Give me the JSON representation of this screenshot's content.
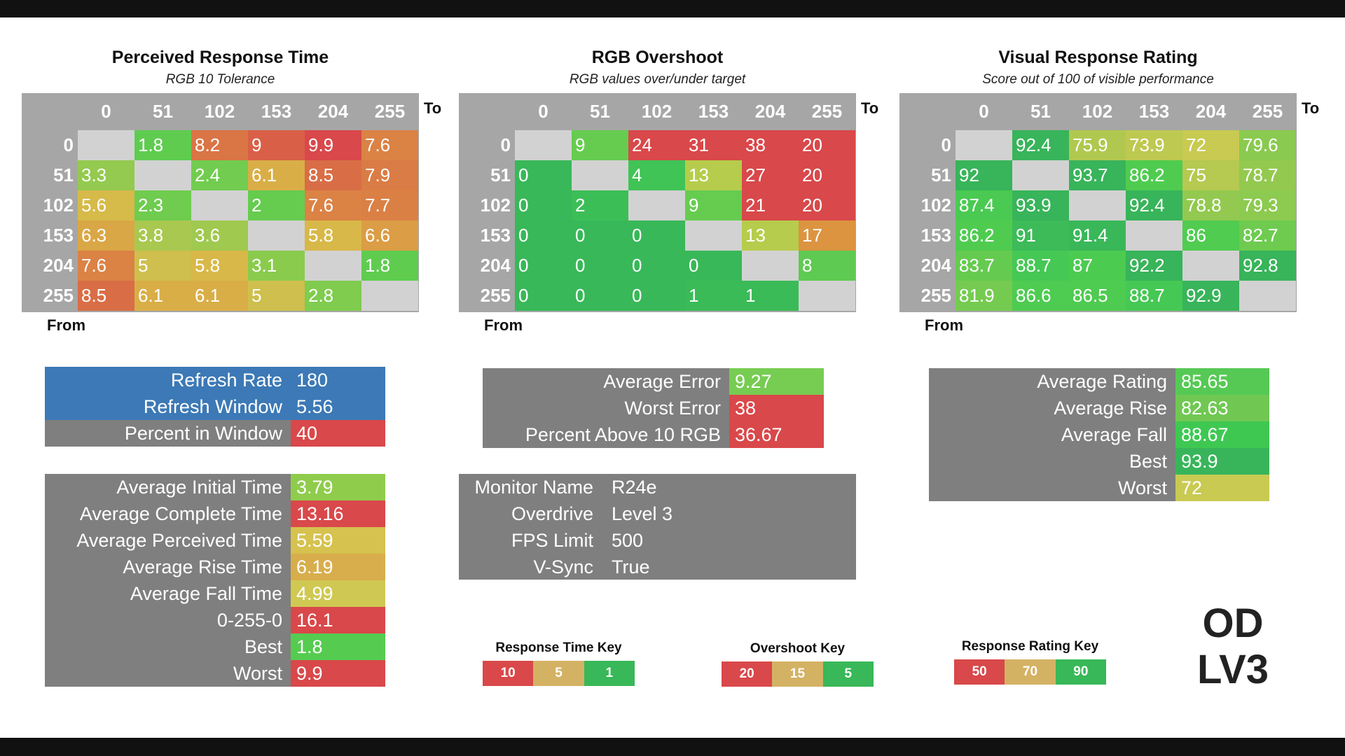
{
  "chart_data": [
    {
      "type": "heatmap",
      "title": "Perceived Response Time",
      "subtitle": "RGB 10 Tolerance",
      "xlabel": "To",
      "ylabel": "From",
      "categories": [
        "0",
        "51",
        "102",
        "153",
        "204",
        "255"
      ],
      "values": [
        [
          null,
          1.8,
          8.2,
          9,
          9.9,
          7.6
        ],
        [
          3.3,
          null,
          2.4,
          6.1,
          8.5,
          7.9
        ],
        [
          5.6,
          2.3,
          null,
          2,
          7.6,
          7.7
        ],
        [
          6.3,
          3.8,
          3.6,
          null,
          5.8,
          6.6
        ],
        [
          7.6,
          5,
          5.8,
          3.1,
          null,
          1.8
        ],
        [
          8.5,
          6.1,
          6.1,
          5,
          2.8,
          null
        ]
      ]
    },
    {
      "type": "heatmap",
      "title": "RGB Overshoot",
      "subtitle": "RGB values over/under target",
      "xlabel": "To",
      "ylabel": "From",
      "categories": [
        "0",
        "51",
        "102",
        "153",
        "204",
        "255"
      ],
      "values": [
        [
          null,
          9,
          24,
          31,
          38,
          20
        ],
        [
          0,
          null,
          4,
          13,
          27,
          20
        ],
        [
          0,
          2,
          null,
          9,
          21,
          20
        ],
        [
          0,
          0,
          0,
          null,
          13,
          17
        ],
        [
          0,
          0,
          0,
          0,
          null,
          8
        ],
        [
          0,
          0,
          0,
          1,
          1,
          null
        ]
      ]
    },
    {
      "type": "heatmap",
      "title": "Visual Response Rating",
      "subtitle": "Score out of 100 of visible performance",
      "xlabel": "To",
      "ylabel": "From",
      "categories": [
        "0",
        "51",
        "102",
        "153",
        "204",
        "255"
      ],
      "values": [
        [
          null,
          92.4,
          75.9,
          73.9,
          72,
          79.6
        ],
        [
          92,
          null,
          93.7,
          86.2,
          75,
          78.7
        ],
        [
          87.4,
          93.9,
          null,
          92.4,
          78.8,
          79.3
        ],
        [
          86.2,
          91,
          91.4,
          null,
          86,
          82.7
        ],
        [
          83.7,
          88.7,
          87,
          92.2,
          null,
          92.8
        ],
        [
          81.9,
          86.6,
          86.5,
          88.7,
          92.9,
          null
        ]
      ]
    }
  ],
  "refresh": [
    {
      "label": "Refresh Rate",
      "value": "180",
      "color": "#3c79b6"
    },
    {
      "label": "Refresh Window",
      "value": "5.56",
      "color": "#3c79b6"
    },
    {
      "label": "Percent in Window",
      "value": "40",
      "color": "#d9484a"
    }
  ],
  "response_stats": [
    {
      "label": "Average Initial Time",
      "value": "3.79",
      "color": "#8fcc4c"
    },
    {
      "label": "Average Complete Time",
      "value": "13.16",
      "color": "#d9484a"
    },
    {
      "label": "Average Perceived Time",
      "value": "5.59",
      "color": "#d6c24e"
    },
    {
      "label": "Average Rise Time",
      "value": "6.19",
      "color": "#d8ae4c"
    },
    {
      "label": "Average Fall Time",
      "value": "4.99",
      "color": "#cfc852"
    },
    {
      "label": "0-255-0",
      "value": "16.1",
      "color": "#d9484a"
    },
    {
      "label": "Best",
      "value": "1.8",
      "color": "#55cc50"
    },
    {
      "label": "Worst",
      "value": "9.9",
      "color": "#d9484a"
    }
  ],
  "overshoot_stats": [
    {
      "label": "Average Error",
      "value": "9.27",
      "color": "#77cc52"
    },
    {
      "label": "Worst Error",
      "value": "38",
      "color": "#d9484a"
    },
    {
      "label": "Percent Above 10 RGB",
      "value": "36.67",
      "color": "#d9484a"
    }
  ],
  "monitor": [
    {
      "label": "Monitor Name",
      "value": "R24e"
    },
    {
      "label": "Overdrive",
      "value": "Level 3"
    },
    {
      "label": "FPS Limit",
      "value": "500"
    },
    {
      "label": "V-Sync",
      "value": "True"
    }
  ],
  "rating_stats": [
    {
      "label": "Average Rating",
      "value": "85.65",
      "color": "#56c955"
    },
    {
      "label": "Average Rise",
      "value": "82.63",
      "color": "#70c853"
    },
    {
      "label": "Average Fall",
      "value": "88.67",
      "color": "#3ec852"
    },
    {
      "label": "Best",
      "value": "93.9",
      "color": "#38b55a"
    },
    {
      "label": "Worst",
      "value": "72",
      "color": "#c8ca52"
    }
  ],
  "keys": [
    {
      "title": "Response Time Key",
      "items": [
        {
          "label": "10",
          "color": "#d9484a"
        },
        {
          "label": "5",
          "color": "#d4b264"
        },
        {
          "label": "1",
          "color": "#38b858"
        }
      ]
    },
    {
      "title": "Overshoot Key",
      "items": [
        {
          "label": "20",
          "color": "#d9484a"
        },
        {
          "label": "15",
          "color": "#d4b264"
        },
        {
          "label": "5",
          "color": "#38b858"
        }
      ]
    },
    {
      "title": "Response Rating Key",
      "items": [
        {
          "label": "50",
          "color": "#d9484a"
        },
        {
          "label": "70",
          "color": "#d4b264"
        },
        {
          "label": "90",
          "color": "#38b858"
        }
      ]
    }
  ],
  "badge": {
    "line1": "OD",
    "line2": "LV3"
  }
}
